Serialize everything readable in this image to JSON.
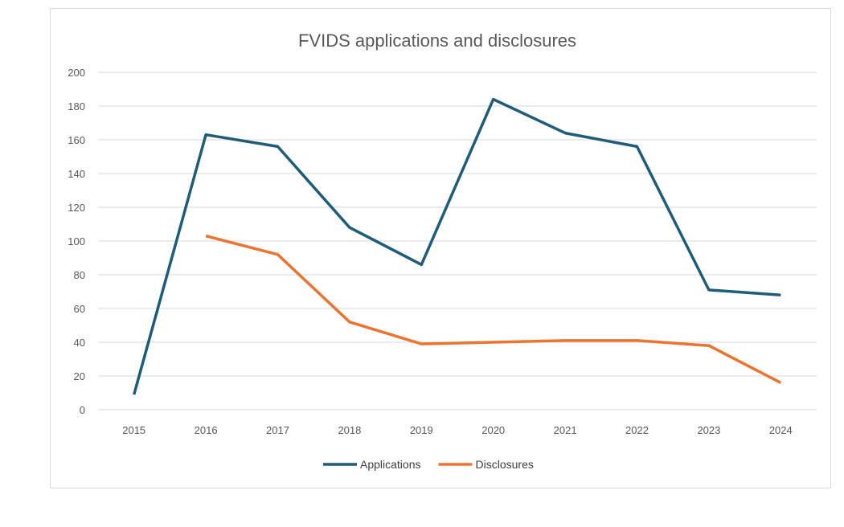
{
  "chart_data": {
    "type": "line",
    "title": "FVIDS applications and disclosures",
    "categories": [
      "2015",
      "2016",
      "2017",
      "2018",
      "2019",
      "2020",
      "2021",
      "2022",
      "2023",
      "2024"
    ],
    "series": [
      {
        "name": "Applications",
        "color": "#1f5c7a",
        "values": [
          9,
          163,
          156,
          108,
          86,
          184,
          164,
          156,
          71,
          68
        ]
      },
      {
        "name": "Disclosures",
        "color": "#ed7330",
        "values": [
          null,
          103,
          92,
          52,
          39,
          40,
          41,
          41,
          38,
          16
        ]
      }
    ],
    "ylim": [
      0,
      200
    ],
    "yticks": [
      0,
      20,
      40,
      60,
      80,
      100,
      120,
      140,
      160,
      180,
      200
    ],
    "grid": true,
    "legend_position": "bottom"
  }
}
